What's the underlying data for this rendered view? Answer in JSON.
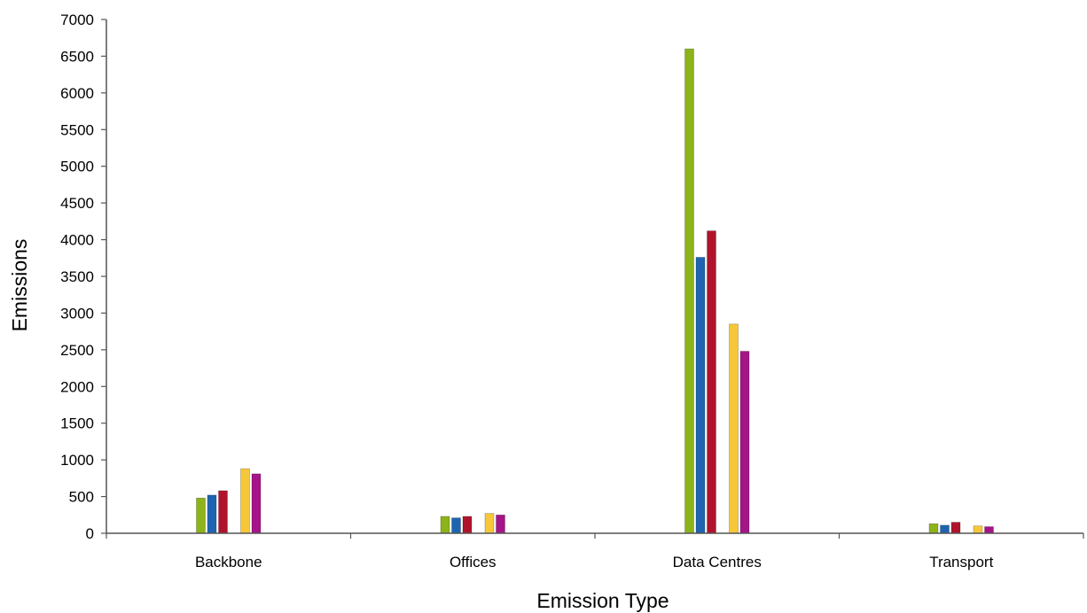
{
  "chart_data": {
    "type": "bar",
    "title": "",
    "xlabel": "Emission Type",
    "ylabel": "Emissions",
    "ylim": [
      0,
      7000
    ],
    "yticks": [
      0,
      500,
      1000,
      1500,
      2000,
      2500,
      3000,
      3500,
      4000,
      4500,
      5000,
      5500,
      6000,
      6500,
      7000
    ],
    "grid": false,
    "legend": "none",
    "categories": [
      "Backbone",
      "Offices",
      "Data Centres",
      "Transport"
    ],
    "series": [
      {
        "color": "#8db31a",
        "values": [
          480,
          230,
          6600,
          130
        ]
      },
      {
        "color": "#1f64b0",
        "values": [
          520,
          210,
          3760,
          110
        ]
      },
      {
        "color": "#b0142c",
        "values": [
          580,
          230,
          4120,
          150
        ]
      },
      {
        "color": "#ffffff",
        "values": [
          0,
          0,
          0,
          0
        ]
      },
      {
        "color": "#f6c739",
        "values": [
          880,
          270,
          2850,
          100
        ]
      },
      {
        "color": "#a51588",
        "values": [
          810,
          250,
          2480,
          90
        ]
      }
    ]
  }
}
